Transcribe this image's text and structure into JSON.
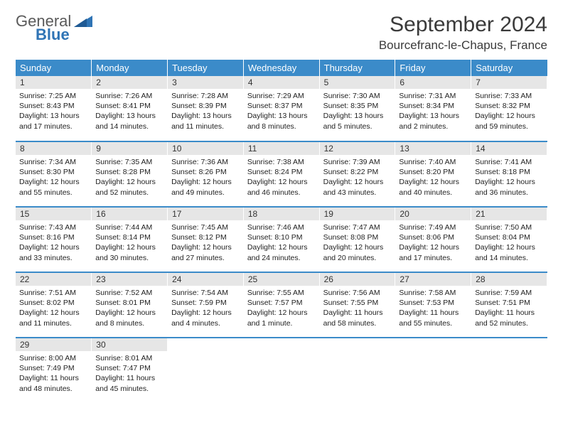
{
  "logo": {
    "word1": "General",
    "word2": "Blue"
  },
  "header": {
    "title": "September 2024",
    "location": "Bourcefranc-le-Chapus, France"
  },
  "colors": {
    "header_bg": "#3b8bc9",
    "header_text": "#ffffff",
    "daynum_bg": "#e6e6e6",
    "row_border": "#3b8bc9",
    "logo_gray": "#5a5a5a",
    "logo_blue": "#2f74b5"
  },
  "weekdays": [
    "Sunday",
    "Monday",
    "Tuesday",
    "Wednesday",
    "Thursday",
    "Friday",
    "Saturday"
  ],
  "weeks": [
    [
      {
        "n": "1",
        "sr": "Sunrise: 7:25 AM",
        "ss": "Sunset: 8:43 PM",
        "dl": "Daylight: 13 hours and 17 minutes."
      },
      {
        "n": "2",
        "sr": "Sunrise: 7:26 AM",
        "ss": "Sunset: 8:41 PM",
        "dl": "Daylight: 13 hours and 14 minutes."
      },
      {
        "n": "3",
        "sr": "Sunrise: 7:28 AM",
        "ss": "Sunset: 8:39 PM",
        "dl": "Daylight: 13 hours and 11 minutes."
      },
      {
        "n": "4",
        "sr": "Sunrise: 7:29 AM",
        "ss": "Sunset: 8:37 PM",
        "dl": "Daylight: 13 hours and 8 minutes."
      },
      {
        "n": "5",
        "sr": "Sunrise: 7:30 AM",
        "ss": "Sunset: 8:35 PM",
        "dl": "Daylight: 13 hours and 5 minutes."
      },
      {
        "n": "6",
        "sr": "Sunrise: 7:31 AM",
        "ss": "Sunset: 8:34 PM",
        "dl": "Daylight: 13 hours and 2 minutes."
      },
      {
        "n": "7",
        "sr": "Sunrise: 7:33 AM",
        "ss": "Sunset: 8:32 PM",
        "dl": "Daylight: 12 hours and 59 minutes."
      }
    ],
    [
      {
        "n": "8",
        "sr": "Sunrise: 7:34 AM",
        "ss": "Sunset: 8:30 PM",
        "dl": "Daylight: 12 hours and 55 minutes."
      },
      {
        "n": "9",
        "sr": "Sunrise: 7:35 AM",
        "ss": "Sunset: 8:28 PM",
        "dl": "Daylight: 12 hours and 52 minutes."
      },
      {
        "n": "10",
        "sr": "Sunrise: 7:36 AM",
        "ss": "Sunset: 8:26 PM",
        "dl": "Daylight: 12 hours and 49 minutes."
      },
      {
        "n": "11",
        "sr": "Sunrise: 7:38 AM",
        "ss": "Sunset: 8:24 PM",
        "dl": "Daylight: 12 hours and 46 minutes."
      },
      {
        "n": "12",
        "sr": "Sunrise: 7:39 AM",
        "ss": "Sunset: 8:22 PM",
        "dl": "Daylight: 12 hours and 43 minutes."
      },
      {
        "n": "13",
        "sr": "Sunrise: 7:40 AM",
        "ss": "Sunset: 8:20 PM",
        "dl": "Daylight: 12 hours and 40 minutes."
      },
      {
        "n": "14",
        "sr": "Sunrise: 7:41 AM",
        "ss": "Sunset: 8:18 PM",
        "dl": "Daylight: 12 hours and 36 minutes."
      }
    ],
    [
      {
        "n": "15",
        "sr": "Sunrise: 7:43 AM",
        "ss": "Sunset: 8:16 PM",
        "dl": "Daylight: 12 hours and 33 minutes."
      },
      {
        "n": "16",
        "sr": "Sunrise: 7:44 AM",
        "ss": "Sunset: 8:14 PM",
        "dl": "Daylight: 12 hours and 30 minutes."
      },
      {
        "n": "17",
        "sr": "Sunrise: 7:45 AM",
        "ss": "Sunset: 8:12 PM",
        "dl": "Daylight: 12 hours and 27 minutes."
      },
      {
        "n": "18",
        "sr": "Sunrise: 7:46 AM",
        "ss": "Sunset: 8:10 PM",
        "dl": "Daylight: 12 hours and 24 minutes."
      },
      {
        "n": "19",
        "sr": "Sunrise: 7:47 AM",
        "ss": "Sunset: 8:08 PM",
        "dl": "Daylight: 12 hours and 20 minutes."
      },
      {
        "n": "20",
        "sr": "Sunrise: 7:49 AM",
        "ss": "Sunset: 8:06 PM",
        "dl": "Daylight: 12 hours and 17 minutes."
      },
      {
        "n": "21",
        "sr": "Sunrise: 7:50 AM",
        "ss": "Sunset: 8:04 PM",
        "dl": "Daylight: 12 hours and 14 minutes."
      }
    ],
    [
      {
        "n": "22",
        "sr": "Sunrise: 7:51 AM",
        "ss": "Sunset: 8:02 PM",
        "dl": "Daylight: 12 hours and 11 minutes."
      },
      {
        "n": "23",
        "sr": "Sunrise: 7:52 AM",
        "ss": "Sunset: 8:01 PM",
        "dl": "Daylight: 12 hours and 8 minutes."
      },
      {
        "n": "24",
        "sr": "Sunrise: 7:54 AM",
        "ss": "Sunset: 7:59 PM",
        "dl": "Daylight: 12 hours and 4 minutes."
      },
      {
        "n": "25",
        "sr": "Sunrise: 7:55 AM",
        "ss": "Sunset: 7:57 PM",
        "dl": "Daylight: 12 hours and 1 minute."
      },
      {
        "n": "26",
        "sr": "Sunrise: 7:56 AM",
        "ss": "Sunset: 7:55 PM",
        "dl": "Daylight: 11 hours and 58 minutes."
      },
      {
        "n": "27",
        "sr": "Sunrise: 7:58 AM",
        "ss": "Sunset: 7:53 PM",
        "dl": "Daylight: 11 hours and 55 minutes."
      },
      {
        "n": "28",
        "sr": "Sunrise: 7:59 AM",
        "ss": "Sunset: 7:51 PM",
        "dl": "Daylight: 11 hours and 52 minutes."
      }
    ],
    [
      {
        "n": "29",
        "sr": "Sunrise: 8:00 AM",
        "ss": "Sunset: 7:49 PM",
        "dl": "Daylight: 11 hours and 48 minutes."
      },
      {
        "n": "30",
        "sr": "Sunrise: 8:01 AM",
        "ss": "Sunset: 7:47 PM",
        "dl": "Daylight: 11 hours and 45 minutes."
      },
      null,
      null,
      null,
      null,
      null
    ]
  ]
}
